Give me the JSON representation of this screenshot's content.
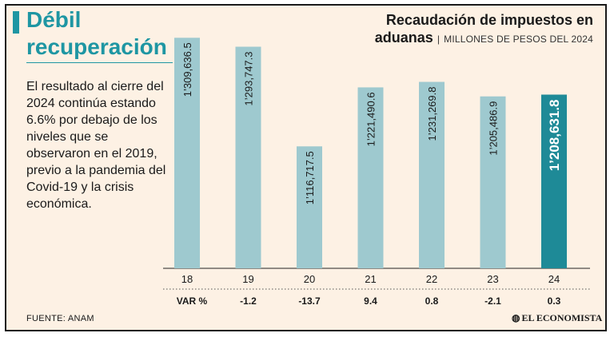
{
  "headline": {
    "line1": "Débil",
    "line2": "recuperación"
  },
  "description": "El resultado al cierre del 2024 continúa estando 6.6% por debajo de los niveles que se observaron en el 2019, previo a la pandemia del Covid-19 y la crisis económica.",
  "chart_header": {
    "title_line1": "Recaudación de impuestos en",
    "title_line2": "aduanas",
    "separator": "|",
    "unit": "MILLONES DE PESOS DEL 2024"
  },
  "source": "FUENTE: ANAM",
  "brand": "EL ECONOMISTA",
  "colors": {
    "bar": "#9ec9cf",
    "bar_highlight": "#1e8a97",
    "accent": "#1e96a3",
    "text": "#1a1a1a"
  },
  "chart_data": {
    "type": "bar",
    "title": "Recaudación de impuestos en aduanas",
    "ylabel": "Millones de pesos del 2024",
    "xlabel": "",
    "categories": [
      "18",
      "19",
      "20",
      "21",
      "22",
      "23",
      "24"
    ],
    "values": [
      1309636.5,
      1293747.3,
      1116717.5,
      1221490.6,
      1231269.8,
      1205486.9,
      1208631.8
    ],
    "value_labels": [
      "1’309,636.5",
      "1’293,747.3",
      "1’116,717.5",
      "1’221,490.6",
      "1’231,269.8",
      "1’205,486.9",
      "1’208,631.8"
    ],
    "highlight_index": 6,
    "variation_label": "VAR %",
    "variation": [
      "",
      "-1.2",
      "-13.7",
      "9.4",
      "0.8",
      "-2.1",
      "0.3"
    ],
    "ylim": [
      900000,
      1320000
    ]
  }
}
